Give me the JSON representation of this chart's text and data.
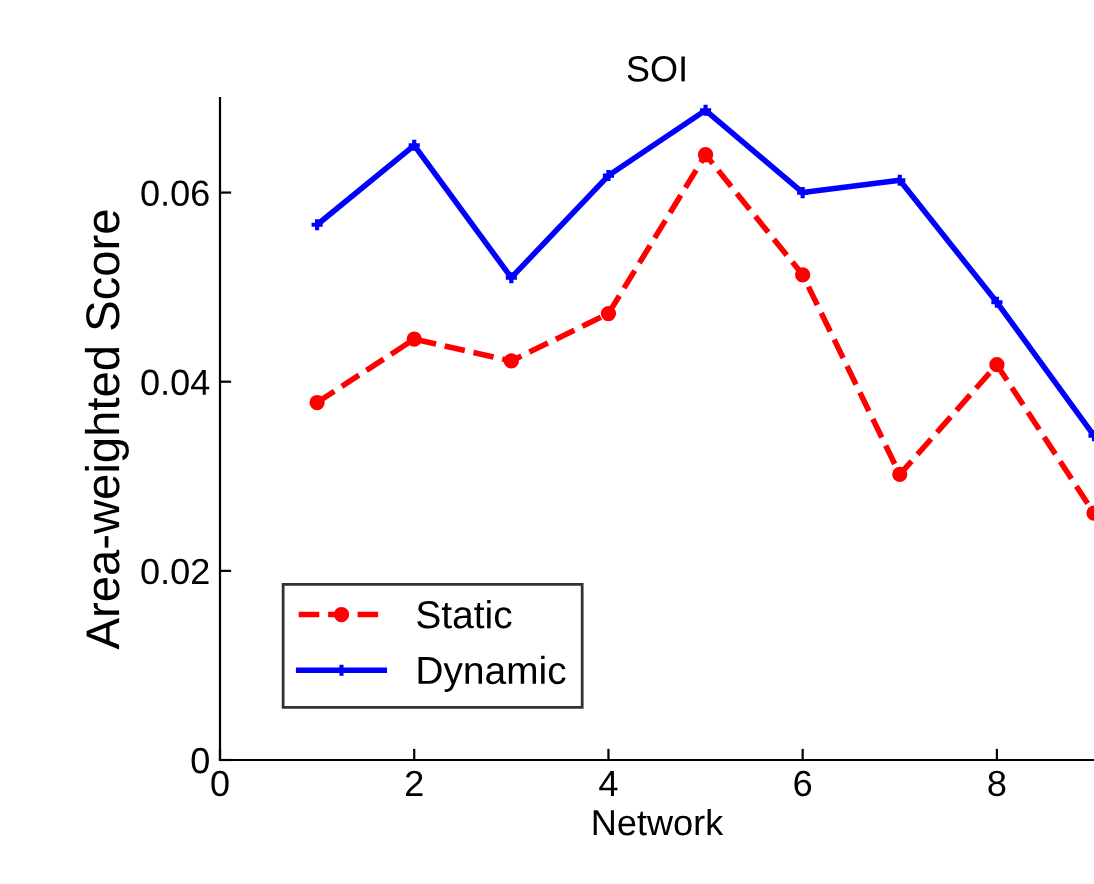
{
  "chart_data": {
    "type": "line",
    "title": "SOI",
    "xlabel": "Network",
    "ylabel": "Area-weighted Score",
    "x": [
      1,
      2,
      3,
      4,
      5,
      6,
      7,
      8,
      9
    ],
    "series": [
      {
        "name": "Static",
        "color": "#ff0000",
        "line_style": "dashed",
        "marker": "circle",
        "values": [
          0.0378,
          0.0445,
          0.0422,
          0.0472,
          0.064,
          0.0513,
          0.0302,
          0.0418,
          0.0261
        ]
      },
      {
        "name": "Dynamic",
        "color": "#0000ff",
        "line_style": "solid",
        "marker": "cross",
        "values": [
          0.0566,
          0.065,
          0.051,
          0.0618,
          0.0687,
          0.06,
          0.0613,
          0.0484,
          0.0343
        ]
      }
    ],
    "xlim": [
      0,
      9
    ],
    "xticks": [
      0,
      2,
      4,
      6,
      8
    ],
    "ylim": [
      0,
      0.07
    ],
    "yticks": [
      0,
      0.02,
      0.04,
      0.06
    ],
    "grid": false,
    "legend": "bottom left"
  }
}
